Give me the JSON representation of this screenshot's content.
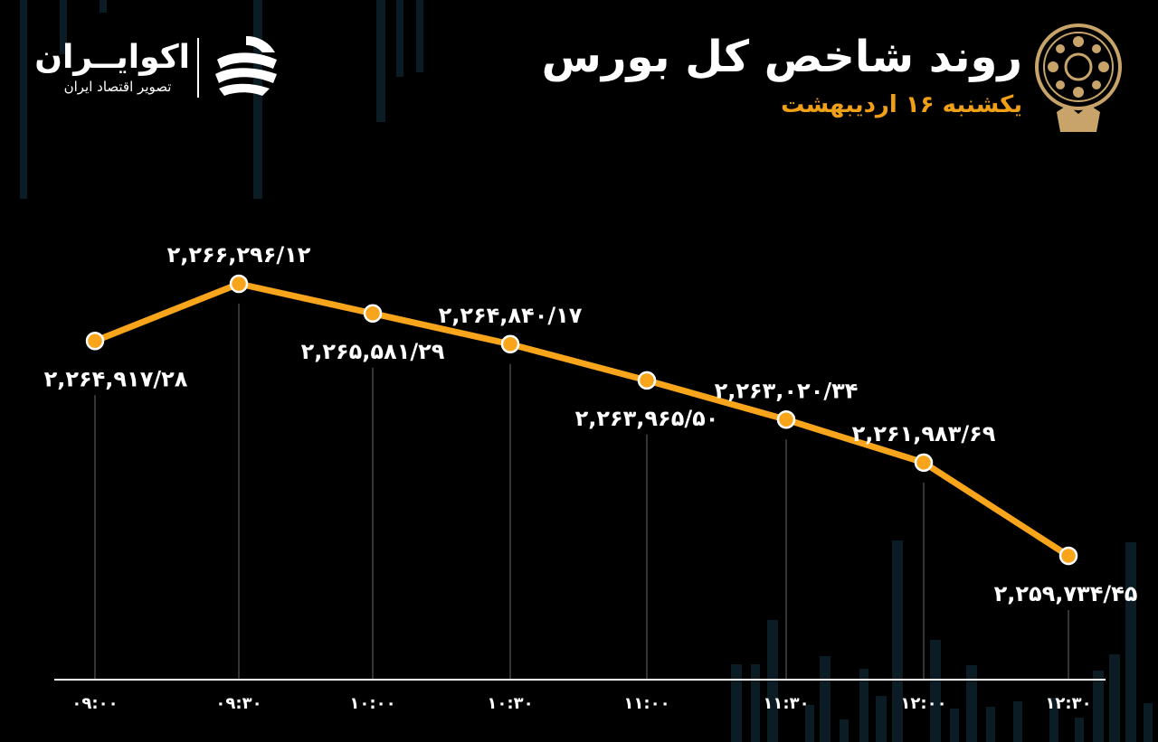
{
  "header": {
    "title": "روند شاخص کل بورس",
    "subtitle": "یکشنبه ۱۶ اردیبهشت"
  },
  "brand": {
    "name": "اکوایــران",
    "tagline": "تصویر اقتصاد ایران"
  },
  "colors": {
    "background": "#000000",
    "line": "#f8a51b",
    "accent": "#f0a017",
    "text": "#ffffff",
    "emblem": "#c8a46a"
  },
  "icons": {
    "brand_logo": "ekoiran-swoosh-icon",
    "emblem": "stock-exchange-emblem-icon"
  },
  "chart_data": {
    "type": "line",
    "categories": [
      "۰۹:۰۰",
      "۰۹:۳۰",
      "۱۰:۰۰",
      "۱۰:۳۰",
      "۱۱:۰۰",
      "۱۱:۳۰",
      "۱۲:۰۰",
      "۱۲:۳۰"
    ],
    "values": [
      2264917.28,
      2266296.12,
      2265581.29,
      2264840.17,
      2263965.5,
      2263020.34,
      2261983.69,
      2259734.45
    ],
    "data_labels": [
      "۲,۲۶۴,۹۱۷/۲۸",
      "۲,۲۶۶,۲۹۶/۱۲",
      "۲,۲۶۵,۵۸۱/۲۹",
      "۲,۲۶۴,۸۴۰/۱۷",
      "۲,۲۶۳,۹۶۵/۵۰",
      "۲,۲۶۳,۰۲۰/۳۴",
      "۲,۲۶۱,۹۸۳/۶۹",
      "۲,۲۵۹,۷۳۴/۴۵"
    ],
    "label_position": [
      "below",
      "above",
      "below",
      "above",
      "below",
      "above",
      "above",
      "below"
    ],
    "title": "روند شاخص کل بورس",
    "xlabel": "",
    "ylabel": "",
    "grid": false,
    "legend": "none"
  }
}
